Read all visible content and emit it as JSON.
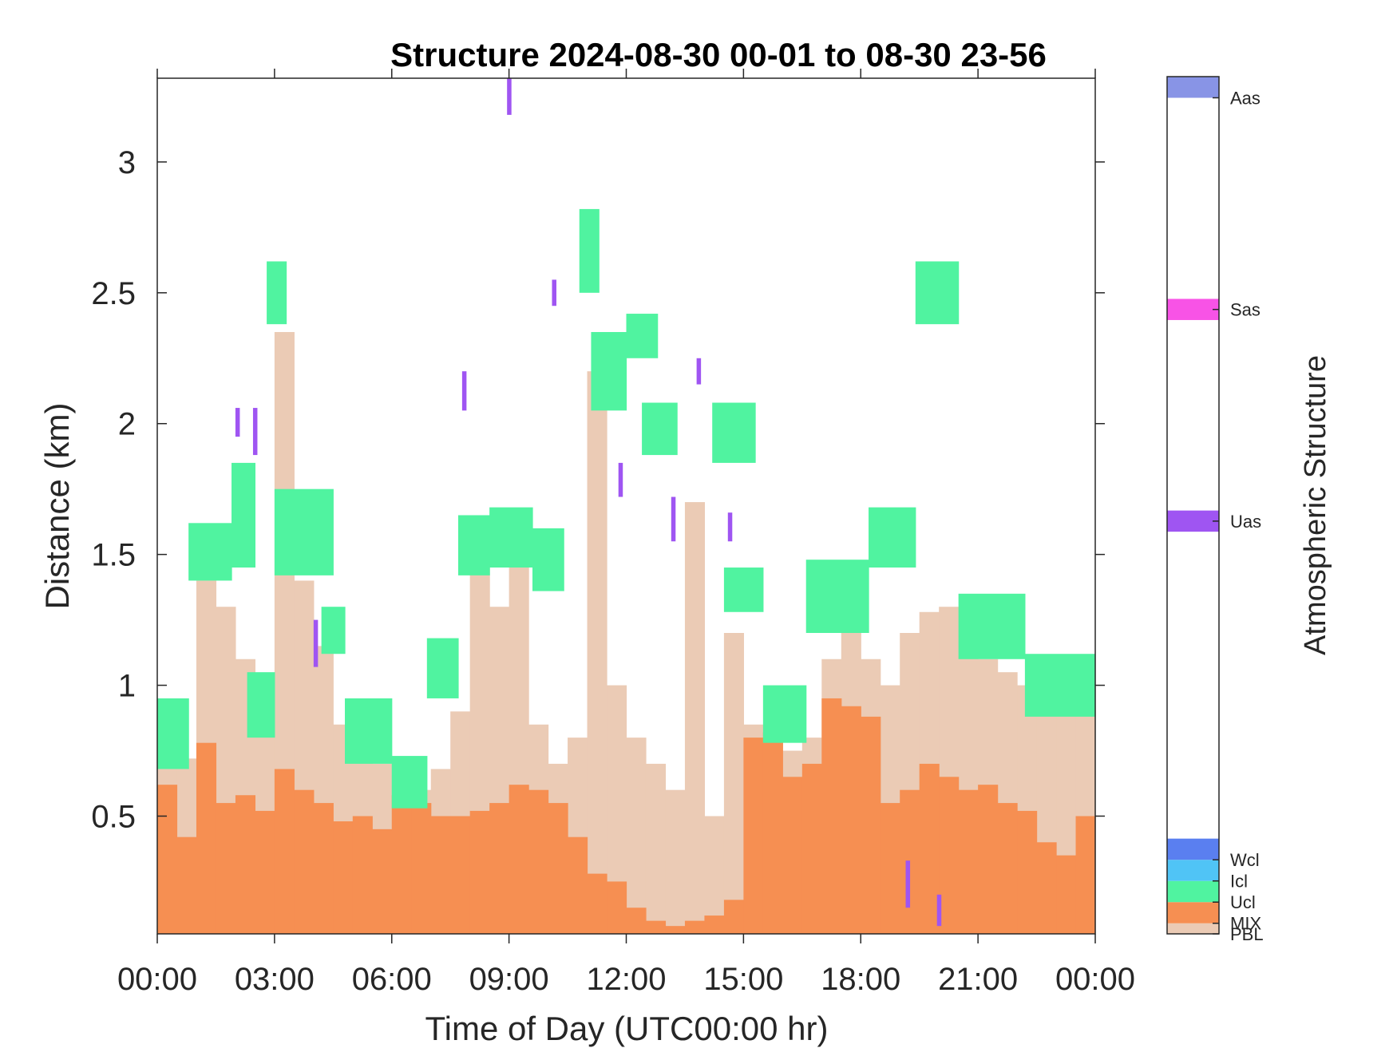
{
  "chart_data": {
    "type": "heatmap",
    "title": "Structure 2024-08-30 00-01 to 08-30 23-56",
    "xlabel": "Time of Day (UTC00:00 hr)",
    "ylabel": "Distance (km)",
    "colorbar_label": "Atmospheric Structure",
    "xlim": [
      0,
      24
    ],
    "ylim": [
      0.05,
      3.32
    ],
    "x_ticks": [
      0,
      3,
      6,
      9,
      12,
      15,
      18,
      21,
      24
    ],
    "x_tick_labels": [
      "00:00",
      "03:00",
      "06:00",
      "09:00",
      "12:00",
      "15:00",
      "18:00",
      "21:00",
      "00:00"
    ],
    "y_ticks": [
      0.5,
      1,
      1.5,
      2,
      2.5,
      3
    ],
    "y_tick_labels": [
      "0.5",
      "1",
      "1.5",
      "2",
      "2.5",
      "3"
    ],
    "grid": false,
    "legend_position": "colorbar-right",
    "categories": [
      {
        "name": "PBL",
        "color": "#EBCBB5"
      },
      {
        "name": "MIX",
        "color": "#F68F52"
      },
      {
        "name": "Ucl",
        "color": "#50F3A0"
      },
      {
        "name": "Icl",
        "color": "#50C4F6"
      },
      {
        "name": "Wcl",
        "color": "#5A7FF0"
      },
      {
        "name": "Uas",
        "color": "#9F55F2"
      },
      {
        "name": "Sas",
        "color": "#F853E6"
      },
      {
        "name": "Aas",
        "color": "#8894E6"
      }
    ],
    "colorbar_levels": {
      "PBL": 0.0,
      "MIX": 0.5,
      "Ucl": 1.5,
      "Icl": 2.5,
      "Wcl": 3.5,
      "Uas": 19.5,
      "Sas": 29.5,
      "Aas": 39.5
    },
    "colorbar_range": [
      0,
      40.5
    ],
    "time_bins": [
      0.0,
      0.5,
      1.0,
      1.5,
      2.0,
      2.5,
      3.0,
      3.5,
      4.0,
      4.5,
      5.0,
      5.5,
      6.0,
      6.5,
      7.0,
      7.5,
      8.0,
      8.5,
      9.0,
      9.5,
      10.0,
      10.5,
      11.0,
      11.5,
      12.0,
      12.5,
      13.0,
      13.5,
      14.0,
      14.5,
      15.0,
      15.5,
      16.0,
      16.5,
      17.0,
      17.5,
      18.0,
      18.5,
      19.0,
      19.5,
      20.0,
      20.5,
      21.0,
      21.5,
      22.0,
      22.5,
      23.0,
      23.5
    ],
    "mix_top_km": [
      0.62,
      0.42,
      0.78,
      0.55,
      0.58,
      0.52,
      0.68,
      0.6,
      0.55,
      0.48,
      0.5,
      0.45,
      0.58,
      0.55,
      0.5,
      0.5,
      0.52,
      0.55,
      0.62,
      0.6,
      0.55,
      0.42,
      0.28,
      0.25,
      0.15,
      0.1,
      0.08,
      0.1,
      0.12,
      0.18,
      0.8,
      0.82,
      0.65,
      0.7,
      0.95,
      0.92,
      0.88,
      0.55,
      0.6,
      0.7,
      0.65,
      0.6,
      0.62,
      0.55,
      0.52,
      0.4,
      0.35,
      0.5
    ],
    "pbl_top_km": [
      0.7,
      0.72,
      1.4,
      1.3,
      1.1,
      0.95,
      2.35,
      1.4,
      1.15,
      0.85,
      0.75,
      0.7,
      0.65,
      0.6,
      0.68,
      0.9,
      1.45,
      1.3,
      1.6,
      0.85,
      0.7,
      0.8,
      2.2,
      1.0,
      0.8,
      0.7,
      0.6,
      1.7,
      0.5,
      1.2,
      0.85,
      0.8,
      0.75,
      0.8,
      1.1,
      1.25,
      1.1,
      1.0,
      1.2,
      1.28,
      1.3,
      1.15,
      1.1,
      1.05,
      1.0,
      0.95,
      0.9,
      0.92
    ],
    "ucl_cells": [
      {
        "t": [
          0.0,
          0.8
        ],
        "z": [
          0.68,
          0.95
        ]
      },
      {
        "t": [
          0.8,
          1.9
        ],
        "z": [
          1.4,
          1.62
        ]
      },
      {
        "t": [
          1.9,
          2.5
        ],
        "z": [
          1.45,
          1.85
        ]
      },
      {
        "t": [
          2.8,
          3.3
        ],
        "z": [
          2.38,
          2.62
        ]
      },
      {
        "t": [
          3.0,
          4.5
        ],
        "z": [
          1.42,
          1.75
        ]
      },
      {
        "t": [
          2.3,
          3.0
        ],
        "z": [
          0.8,
          1.05
        ]
      },
      {
        "t": [
          4.2,
          4.8
        ],
        "z": [
          1.12,
          1.3
        ]
      },
      {
        "t": [
          4.8,
          6.0
        ],
        "z": [
          0.7,
          0.95
        ]
      },
      {
        "t": [
          6.0,
          6.9
        ],
        "z": [
          0.53,
          0.73
        ]
      },
      {
        "t": [
          6.9,
          7.7
        ],
        "z": [
          0.95,
          1.18
        ]
      },
      {
        "t": [
          7.7,
          8.5
        ],
        "z": [
          1.42,
          1.65
        ]
      },
      {
        "t": [
          8.5,
          9.6
        ],
        "z": [
          1.45,
          1.68
        ]
      },
      {
        "t": [
          9.6,
          10.4
        ],
        "z": [
          1.36,
          1.6
        ]
      },
      {
        "t": [
          10.8,
          11.3
        ],
        "z": [
          2.5,
          2.82
        ]
      },
      {
        "t": [
          11.1,
          12.0
        ],
        "z": [
          2.05,
          2.35
        ]
      },
      {
        "t": [
          12.0,
          12.8
        ],
        "z": [
          2.25,
          2.42
        ]
      },
      {
        "t": [
          12.4,
          13.3
        ],
        "z": [
          1.88,
          2.08
        ]
      },
      {
        "t": [
          14.2,
          15.3
        ],
        "z": [
          1.85,
          2.08
        ]
      },
      {
        "t": [
          14.5,
          15.5
        ],
        "z": [
          1.28,
          1.45
        ]
      },
      {
        "t": [
          15.5,
          16.6
        ],
        "z": [
          0.78,
          1.0
        ]
      },
      {
        "t": [
          16.6,
          18.2
        ],
        "z": [
          1.2,
          1.48
        ]
      },
      {
        "t": [
          18.2,
          19.4
        ],
        "z": [
          1.45,
          1.68
        ]
      },
      {
        "t": [
          19.4,
          20.5
        ],
        "z": [
          2.38,
          2.62
        ]
      },
      {
        "t": [
          20.5,
          22.2
        ],
        "z": [
          1.1,
          1.35
        ]
      },
      {
        "t": [
          22.2,
          24.0
        ],
        "z": [
          0.88,
          1.12
        ]
      }
    ],
    "uas_cells": [
      {
        "t": [
          2.0,
          2.1
        ],
        "z": [
          1.95,
          2.06
        ]
      },
      {
        "t": [
          2.45,
          2.55
        ],
        "z": [
          1.88,
          2.06
        ]
      },
      {
        "t": [
          4.0,
          4.1
        ],
        "z": [
          1.07,
          1.25
        ]
      },
      {
        "t": [
          7.8,
          7.9
        ],
        "z": [
          2.05,
          2.2
        ]
      },
      {
        "t": [
          8.95,
          9.05
        ],
        "z": [
          3.18,
          3.32
        ]
      },
      {
        "t": [
          10.1,
          10.2
        ],
        "z": [
          2.45,
          2.55
        ]
      },
      {
        "t": [
          11.8,
          11.9
        ],
        "z": [
          1.72,
          1.85
        ]
      },
      {
        "t": [
          13.15,
          13.25
        ],
        "z": [
          1.55,
          1.72
        ]
      },
      {
        "t": [
          13.8,
          13.9
        ],
        "z": [
          2.15,
          2.25
        ]
      },
      {
        "t": [
          14.6,
          14.7
        ],
        "z": [
          1.55,
          1.66
        ]
      },
      {
        "t": [
          19.15,
          19.25
        ],
        "z": [
          0.15,
          0.33
        ]
      },
      {
        "t": [
          19.95,
          20.05
        ],
        "z": [
          0.08,
          0.2
        ]
      }
    ]
  }
}
